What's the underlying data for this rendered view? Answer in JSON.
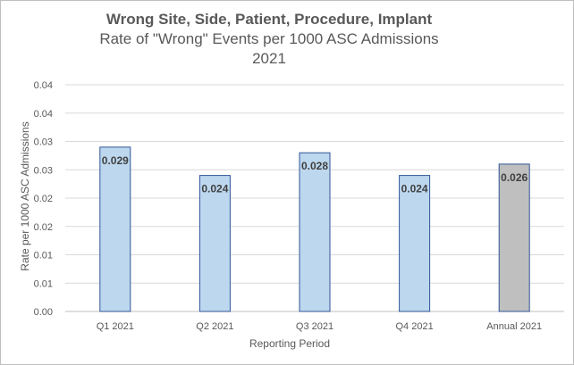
{
  "chart_data": {
    "type": "bar",
    "title": "Wrong Site, Side, Patient, Procedure, Implant",
    "subtitle": "Rate of \"Wrong\" Events per 1000 ASC Admissions",
    "subtitle2": "2021",
    "xlabel": "Reporting Period",
    "ylabel": "Rate per 1000 ASC Admissions",
    "categories": [
      "Q1 2021",
      "Q2 2021",
      "Q3 2021",
      "Q4 2021",
      "Annual 2021"
    ],
    "values": [
      0.029,
      0.024,
      0.028,
      0.024,
      0.026
    ],
    "data_labels": [
      "0.029",
      "0.024",
      "0.028",
      "0.024",
      "0.026"
    ],
    "bar_colors": [
      "#bdd7ee",
      "#bdd7ee",
      "#bdd7ee",
      "#bdd7ee",
      "#bfbfbf"
    ],
    "bar_border_colors": [
      "#2f5597",
      "#2f5597",
      "#2f5597",
      "#2f5597",
      "#2f5597"
    ],
    "y_ticks": [
      0,
      0.005,
      0.01,
      0.015,
      0.02,
      0.025,
      0.03,
      0.035,
      0.04
    ],
    "y_tick_labels": [
      "0.00",
      "0.01",
      "0.01",
      "0.02",
      "0.02",
      "0.03",
      "0.03",
      "0.04",
      "0.04"
    ],
    "ylim": [
      0,
      0.04
    ],
    "grid": true,
    "legend": "none"
  }
}
